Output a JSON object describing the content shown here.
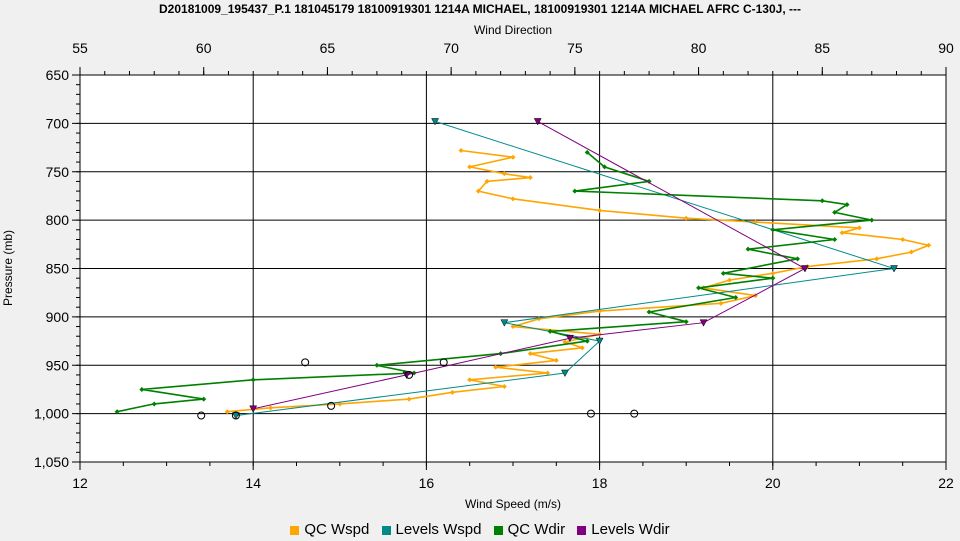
{
  "chart_data": {
    "type": "line",
    "title": "D20181009_195437_P.1 181045179 18100919301 1214A MICHAEL, 18100919301 1214A MICHAEL AFRC C-130J, ---",
    "xlabel_bottom": "Wind Speed (m/s)",
    "xlabel_top": "Wind Direction",
    "ylabel": "Pressure (mb)",
    "x_bottom_range": [
      12,
      22
    ],
    "x_bottom_ticks": [
      "12",
      "14",
      "16",
      "18",
      "20",
      "22"
    ],
    "x_top_range": [
      55,
      90
    ],
    "x_top_ticks": [
      "55",
      "60",
      "65",
      "70",
      "75",
      "80",
      "85",
      "90"
    ],
    "y_range": [
      650,
      1050
    ],
    "y_inverted": true,
    "y_ticks": [
      "650",
      "700",
      "750",
      "800",
      "850",
      "900",
      "950",
      "1,000",
      "1,050"
    ],
    "grid": true,
    "legend_position": "bottom",
    "series": [
      {
        "name": "QC Wspd",
        "axis": "bottom",
        "color": "#FFA500",
        "points": [
          [
            16.4,
            728
          ],
          [
            17.0,
            735
          ],
          [
            16.5,
            745
          ],
          [
            16.9,
            752
          ],
          [
            17.2,
            756
          ],
          [
            16.7,
            760
          ],
          [
            16.6,
            770
          ],
          [
            17.0,
            778
          ],
          [
            18.0,
            790
          ],
          [
            19.0,
            798
          ],
          [
            19.8,
            802
          ],
          [
            21.0,
            808
          ],
          [
            20.8,
            813
          ],
          [
            21.5,
            820
          ],
          [
            21.8,
            826
          ],
          [
            21.6,
            833
          ],
          [
            21.2,
            840
          ],
          [
            20.4,
            848
          ],
          [
            20.0,
            855
          ],
          [
            19.5,
            862
          ],
          [
            19.2,
            870
          ],
          [
            19.8,
            878
          ],
          [
            19.4,
            886
          ],
          [
            18.0,
            894
          ],
          [
            17.3,
            902
          ],
          [
            17.0,
            910
          ],
          [
            18.0,
            918
          ],
          [
            17.6,
            926
          ],
          [
            17.8,
            932
          ],
          [
            17.2,
            938
          ],
          [
            17.5,
            945
          ],
          [
            16.8,
            952
          ],
          [
            17.4,
            958
          ],
          [
            16.5,
            965
          ],
          [
            16.9,
            972
          ],
          [
            16.3,
            978
          ],
          [
            15.8,
            985
          ],
          [
            15.0,
            990
          ],
          [
            14.2,
            994
          ],
          [
            13.7,
            998
          ]
        ]
      },
      {
        "name": "Levels Wspd",
        "axis": "bottom",
        "color": "#008B8B",
        "points": [
          [
            16.1,
            698
          ],
          [
            21.4,
            850
          ],
          [
            16.9,
            906
          ],
          [
            18.0,
            925
          ],
          [
            17.6,
            958
          ],
          [
            13.8,
            1002
          ]
        ]
      },
      {
        "name": "QC Wdir",
        "axis": "top",
        "color": "#008000",
        "points": [
          [
            75.5,
            730
          ],
          [
            76.2,
            745
          ],
          [
            78.0,
            760
          ],
          [
            75.0,
            770
          ],
          [
            85.0,
            780
          ],
          [
            86.0,
            784
          ],
          [
            85.5,
            792
          ],
          [
            87.0,
            800
          ],
          [
            83.0,
            810
          ],
          [
            85.5,
            820
          ],
          [
            82.0,
            830
          ],
          [
            84.0,
            840
          ],
          [
            81.0,
            855
          ],
          [
            83.0,
            860
          ],
          [
            80.0,
            870
          ],
          [
            81.5,
            880
          ],
          [
            78.0,
            895
          ],
          [
            79.5,
            905
          ],
          [
            74.0,
            915
          ],
          [
            75.5,
            925
          ],
          [
            72.0,
            938
          ],
          [
            67.0,
            950
          ],
          [
            68.5,
            958
          ],
          [
            62.0,
            965
          ],
          [
            57.5,
            975
          ],
          [
            60.0,
            985
          ],
          [
            58.0,
            990
          ],
          [
            56.5,
            998
          ]
        ]
      },
      {
        "name": "Levels Wdir",
        "axis": "top",
        "color": "#800080",
        "points": [
          [
            73.5,
            698
          ],
          [
            84.3,
            850
          ],
          [
            80.2,
            906
          ],
          [
            74.8,
            922
          ],
          [
            68.2,
            960
          ],
          [
            62.0,
            995
          ]
        ]
      }
    ],
    "markers": {
      "axis": "bottom",
      "points": [
        [
          13.4,
          1002
        ],
        [
          13.8,
          1002
        ],
        [
          14.6,
          947
        ],
        [
          14.9,
          992
        ],
        [
          15.8,
          960
        ],
        [
          16.2,
          947
        ],
        [
          17.9,
          1000
        ],
        [
          18.4,
          1000
        ]
      ]
    }
  },
  "legend": {
    "items": [
      {
        "label": "QC Wspd",
        "color": "#FFA500"
      },
      {
        "label": "Levels Wspd",
        "color": "#008B8B"
      },
      {
        "label": "QC Wdir",
        "color": "#008000"
      },
      {
        "label": "Levels Wdir",
        "color": "#800080"
      }
    ]
  }
}
